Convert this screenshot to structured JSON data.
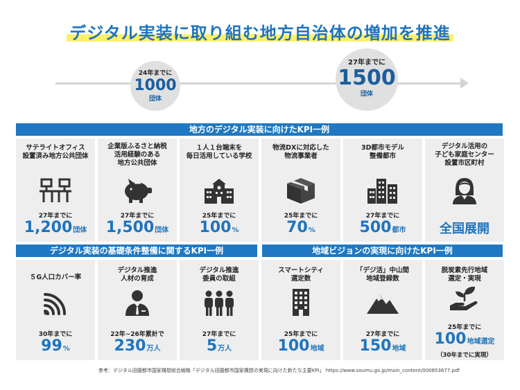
{
  "title": "デジタル実装に取り組む地方自治体の増加を推進",
  "timeline": {
    "first": {
      "when": "24年までに",
      "number": "1000",
      "unit": "団体"
    },
    "second": {
      "when": "27年までに",
      "number": "1500",
      "unit": "団体"
    }
  },
  "sections": {
    "main": "地方のデジタル実装に向けたKPI一例",
    "basic": "デジタル実装の基礎条件整備に関するKPI一例",
    "vision": "地域ビジョンの実現に向けたKPI一例"
  },
  "kpi_top": [
    {
      "label": "サテライトオフィス\n設置済み地方公共団体",
      "icon": "office-desk-icon",
      "when": "27年までに",
      "number": "1,200",
      "unit": "団体"
    },
    {
      "label": "企業版ふるさと納税\n活用経験のある\n地方公共団体",
      "icon": "piggy-bank-icon",
      "when": "27年までに",
      "number": "1,500",
      "unit": "団体"
    },
    {
      "label": "１人１台端末を\n毎日活用している学校",
      "icon": "school-icon",
      "when": "25年までに",
      "number": "100",
      "unit": "%"
    },
    {
      "label": "物流DXに対応した\n物流事業者",
      "icon": "package-box-icon",
      "when": "25年までに",
      "number": "70",
      "unit": "%"
    },
    {
      "label": "3D都市モデル\n整備都市",
      "icon": "city-buildings-icon",
      "when": "27年までに",
      "number": "500",
      "unit": "都市"
    },
    {
      "label": "デジタル活用の\n子ども家庭センター\n設置市区町村",
      "icon": "woman-icon",
      "when": "",
      "number": "全国展開",
      "unit": ""
    }
  ],
  "kpi_bottom": [
    {
      "label": "５G人口カバー率",
      "icon": "wifi-signal-icon",
      "when": "30年までに",
      "number": "99",
      "unit": "%"
    },
    {
      "label": "デジタル推進\n人材の育成",
      "icon": "businessman-icon",
      "when": "22年~26年累計で",
      "number": "230",
      "unit": "万人"
    },
    {
      "label": "デジタル推進\n委員の取組",
      "icon": "people-group-icon",
      "when": "27年までに",
      "number": "5",
      "unit": "万人"
    },
    {
      "label": "スマートシティ\n選定数",
      "icon": "skyscraper-icon",
      "when": "25年までに",
      "number": "100",
      "unit": "地域"
    },
    {
      "label": "「デジ活」中山間\n地域登録数",
      "icon": "mountain-icon",
      "when": "27年までに",
      "number": "150",
      "unit": "地域"
    },
    {
      "label": "脱炭素先行地域\n選定・実現",
      "icon": "plant-hand-icon",
      "when": "25年までに",
      "number": "100",
      "unit": "地域選定",
      "note": "（30年までに実現）"
    }
  ],
  "footer": "参考：デジタル田園都市国家構想総合戦略「デジタル田園都市国家構想の実現に向けた新たな主要KPI」 https://www.soumu.go.jp/main_content/000853677.pdf",
  "colors": {
    "accent": "#1f74bd",
    "band": "#1f78c1",
    "highlight": "#fff06a",
    "card": "#eeeeee"
  }
}
